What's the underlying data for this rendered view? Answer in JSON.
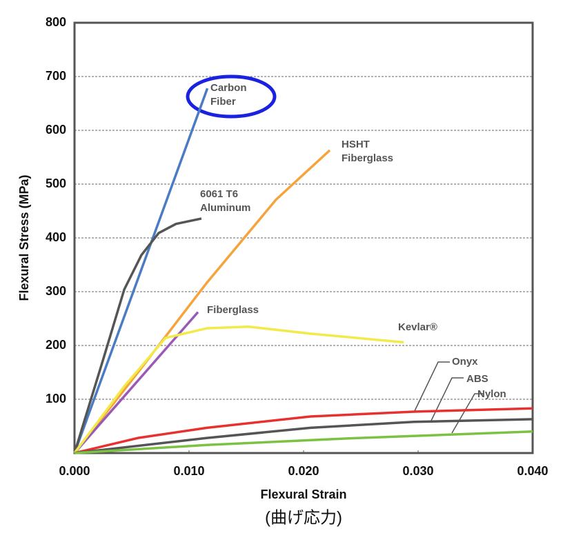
{
  "chart_data": {
    "type": "line",
    "x_label": "Flexural Strain",
    "y_label": "Flexural Stress (MPa)",
    "subtitle": "(曲げ応力)",
    "xlim": [
      0,
      0.04
    ],
    "ylim": [
      0,
      800
    ],
    "xticks": [
      {
        "value": 0,
        "label": "0.000"
      },
      {
        "value": 0.01,
        "label": "0.010"
      },
      {
        "value": 0.02,
        "label": "0.020"
      },
      {
        "value": 0.03,
        "label": "0.030"
      },
      {
        "value": 0.04,
        "label": "0.040"
      }
    ],
    "yticks": [
      100,
      200,
      300,
      400,
      500,
      600,
      700,
      800
    ],
    "grid": true,
    "series": [
      {
        "name": "Carbon Fiber",
        "color": "#4a7cc4",
        "x": [
          0,
          0.0116
        ],
        "values": [
          0,
          678
        ]
      },
      {
        "name": "HSHT Fiberglass",
        "color": "#f5a33a",
        "x": [
          0,
          0.00554,
          0.01157,
          0.01759,
          0.02229
        ],
        "values": [
          0,
          150,
          317,
          471,
          563
        ]
      },
      {
        "name": "6061 T6 Aluminum",
        "color": "#555555",
        "x": [
          0,
          0.00253,
          0.00434,
          0.00584,
          0.00735,
          0.00886,
          0.01108
        ],
        "values": [
          0,
          176,
          304,
          368,
          409,
          426,
          436
        ]
      },
      {
        "name": "Fiberglass",
        "color": "#9b59b6",
        "x": [
          0,
          0.01078
        ],
        "values": [
          0,
          262
        ]
      },
      {
        "name": "Kevlar®",
        "color": "#f2ea4a",
        "x": [
          0,
          0.00434,
          0.00795,
          0.01157,
          0.01518,
          0.0206,
          0.02873
        ],
        "values": [
          0,
          124,
          214,
          232,
          235,
          222,
          206
        ]
      },
      {
        "name": "Onyx",
        "color": "#e8312f",
        "x": [
          0,
          0.00554,
          0.01157,
          0.0206,
          0.02964,
          0.04
        ],
        "values": [
          0,
          28,
          47,
          68,
          77,
          83
        ]
      },
      {
        "name": "ABS",
        "color": "#555555",
        "x": [
          0,
          0.01157,
          0.0206,
          0.02964,
          0.04
        ],
        "values": [
          0,
          28,
          47,
          58,
          63
        ]
      },
      {
        "name": "Nylon",
        "color": "#7cc242",
        "x": [
          0,
          0.01157,
          0.02361,
          0.04
        ],
        "values": [
          0,
          15,
          27,
          40
        ]
      }
    ]
  }
}
